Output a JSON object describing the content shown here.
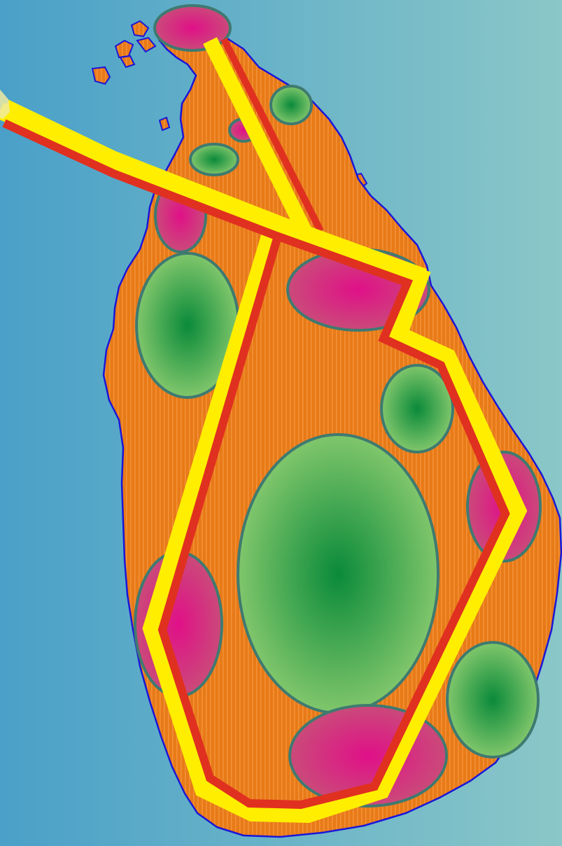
{
  "map": {
    "subject": "island-map",
    "colors": {
      "sea_left": "#4aa0c8",
      "sea_right": "#8ac7c8",
      "land": "#e87a18",
      "land_stripe": "#f08a2a",
      "coast_outline": "#1a16d8",
      "zone_outline": "#3f7a70",
      "green_center": "#0a8a3a",
      "green_edge": "#8ccc70",
      "pink_center": "#e01088",
      "pink_edge": "#c85078",
      "route_outer": "#ffee00",
      "route_inner": "#e03020"
    },
    "zones": [
      {
        "id": "north-tip",
        "kind": "pink"
      },
      {
        "id": "north-east-small",
        "kind": "green"
      },
      {
        "id": "north-tiny",
        "kind": "pink"
      },
      {
        "id": "north-west-small",
        "kind": "green"
      },
      {
        "id": "west-upper",
        "kind": "pink"
      },
      {
        "id": "west-large",
        "kind": "green"
      },
      {
        "id": "north-central",
        "kind": "pink"
      },
      {
        "id": "east-mid",
        "kind": "green"
      },
      {
        "id": "central-large",
        "kind": "green"
      },
      {
        "id": "east-coast",
        "kind": "pink"
      },
      {
        "id": "south-west",
        "kind": "pink"
      },
      {
        "id": "south-east",
        "kind": "green"
      },
      {
        "id": "south",
        "kind": "pink"
      }
    ],
    "routes": [
      {
        "id": "route-west-trunk"
      },
      {
        "id": "route-north-branch"
      },
      {
        "id": "route-main-loop"
      }
    ]
  }
}
